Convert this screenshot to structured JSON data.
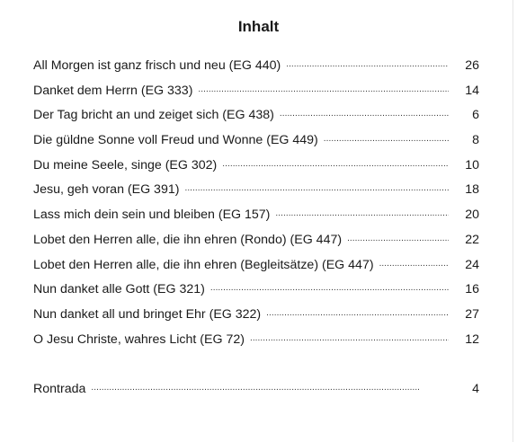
{
  "heading": "Inhalt",
  "entries": [
    {
      "title": "All Morgen ist ganz frisch und neu (EG 440)",
      "page": "26"
    },
    {
      "title": "Danket dem Herrn (EG 333)",
      "page": "14"
    },
    {
      "title": "Der Tag bricht an und zeiget sich (EG 438)",
      "page": "6"
    },
    {
      "title": "Die güldne Sonne voll Freud und Wonne (EG 449)",
      "page": "8"
    },
    {
      "title": "Du meine Seele, singe (EG 302)",
      "page": "10"
    },
    {
      "title": "Jesu, geh voran (EG 391)",
      "page": "18"
    },
    {
      "title": "Lass mich dein sein und bleiben (EG 157)",
      "page": "20"
    },
    {
      "title": "Lobet den Herren alle, die ihn ehren (Rondo) (EG 447)",
      "page": "22"
    },
    {
      "title": "Lobet den Herren alle, die ihn ehren (Begleitsätze) (EG 447)",
      "page": "24"
    },
    {
      "title": "Nun danket alle Gott (EG 321)",
      "page": "16"
    },
    {
      "title": "Nun danket all und bringet Ehr (EG 322)",
      "page": "27"
    },
    {
      "title": "O Jesu Christe, wahres Licht (EG 72)",
      "page": "12"
    }
  ],
  "appendix": [
    {
      "title": "Rontrada",
      "page": "4"
    }
  ]
}
